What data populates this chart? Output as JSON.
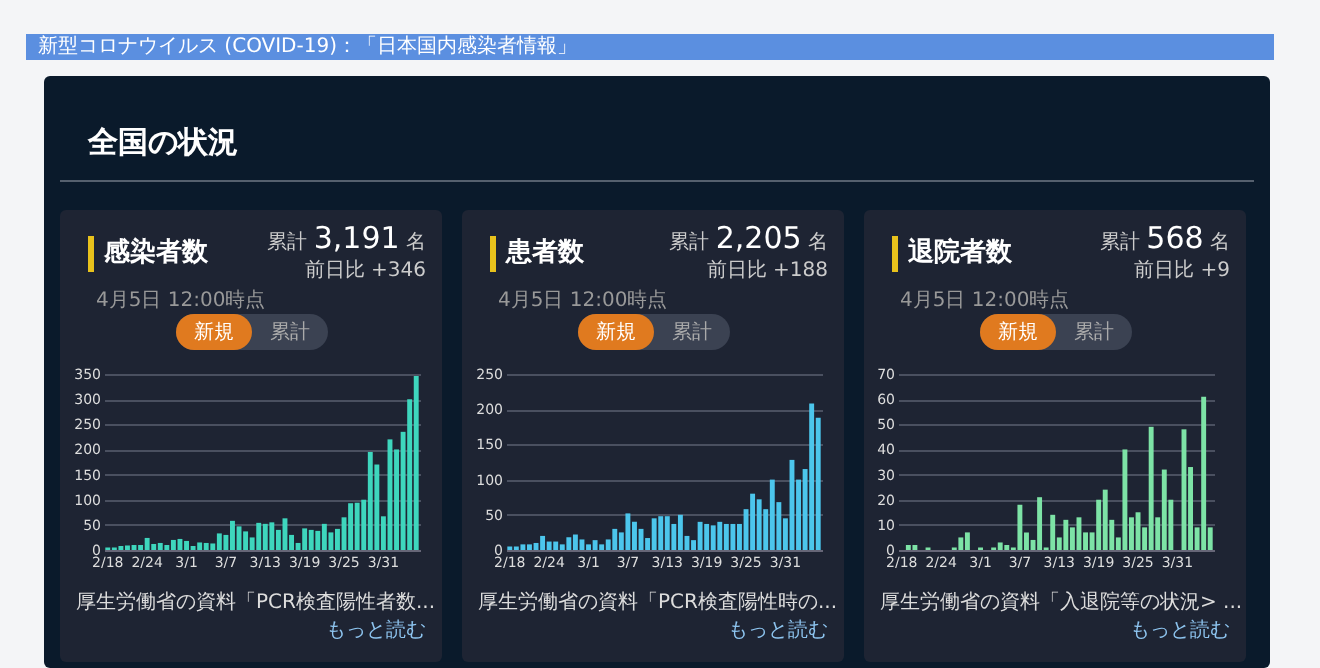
{
  "chart_data": [
    {
      "type": "other",
      "title": "新型コロナウイルス (COVID-19)：「日本国内感染者情報」",
      "subtitle": "全国の状況"
    },
    {
      "type": "bar",
      "title": "感染者数",
      "subtitle": "4月5日 12:00時点",
      "annotations": [
        "累計",
        "3,191",
        "名",
        "前日比 +346",
        "新規",
        "累計",
        "厚生労働省の資料「PCR検査陽性者数...",
        "もっと読む"
      ],
      "categories": [
        "2/18",
        null,
        null,
        null,
        null,
        null,
        "2/24",
        null,
        null,
        null,
        null,
        null,
        "3/1",
        null,
        null,
        null,
        null,
        null,
        "3/7",
        null,
        null,
        null,
        null,
        null,
        "3/13",
        null,
        null,
        null,
        null,
        null,
        "3/19",
        null,
        null,
        null,
        null,
        null,
        "3/25",
        null,
        null,
        null,
        null,
        null,
        "3/31",
        null,
        null,
        null,
        null,
        null
      ],
      "color": "#3ed6bd",
      "values": [
        5,
        5,
        8,
        9,
        10,
        10,
        24,
        12,
        14,
        10,
        20,
        22,
        18,
        8,
        15,
        14,
        13,
        33,
        30,
        58,
        47,
        37,
        25,
        54,
        52,
        55,
        40,
        63,
        30,
        14,
        43,
        40,
        38,
        52,
        35,
        42,
        65,
        93,
        94,
        100,
        195,
        170,
        67,
        220,
        200,
        235,
        300,
        346
      ],
      "ylim": [
        0,
        350
      ],
      "yticks": [
        0,
        50,
        100,
        150,
        200,
        250,
        300,
        350
      ],
      "grid": "y"
    },
    {
      "type": "bar",
      "title": "患者数",
      "subtitle": "4月5日 12:00時点",
      "annotations": [
        "累計",
        "2,205",
        "名",
        "前日比 +188",
        "新規",
        "累計",
        "厚生労働省の資料「PCR検査陽性時の...",
        "もっと読む"
      ],
      "categories": [
        "2/18",
        null,
        null,
        null,
        null,
        null,
        "2/24",
        null,
        null,
        null,
        null,
        null,
        "3/1",
        null,
        null,
        null,
        null,
        null,
        "3/7",
        null,
        null,
        null,
        null,
        null,
        "3/13",
        null,
        null,
        null,
        null,
        null,
        "3/19",
        null,
        null,
        null,
        null,
        null,
        "3/25",
        null,
        null,
        null,
        null,
        null,
        "3/31",
        null,
        null,
        null,
        null,
        null
      ],
      "color": "#4cc6ec",
      "values": [
        5,
        5,
        8,
        8,
        10,
        20,
        12,
        12,
        8,
        18,
        22,
        15,
        8,
        14,
        8,
        15,
        30,
        25,
        52,
        40,
        30,
        17,
        45,
        48,
        48,
        37,
        50,
        20,
        14,
        40,
        37,
        35,
        40,
        37,
        37,
        37,
        58,
        80,
        72,
        58,
        100,
        68,
        45,
        128,
        100,
        115,
        208,
        188
      ],
      "ylim": [
        0,
        250
      ],
      "yticks": [
        0,
        50,
        100,
        150,
        200,
        250
      ],
      "grid": "y"
    },
    {
      "type": "bar",
      "title": "退院者数",
      "subtitle": "4月5日 12:00時点",
      "annotations": [
        "累計",
        "568",
        "名",
        "前日比 +9",
        "新規",
        "累計",
        "厚生労働省の資料「入退院等の状況> ...",
        "もっと読む"
      ],
      "categories": [
        "2/18",
        null,
        null,
        null,
        null,
        null,
        "2/24",
        null,
        null,
        null,
        null,
        null,
        "3/1",
        null,
        null,
        null,
        null,
        null,
        "3/7",
        null,
        null,
        null,
        null,
        null,
        "3/13",
        null,
        null,
        null,
        null,
        null,
        "3/19",
        null,
        null,
        null,
        null,
        null,
        "3/25",
        null,
        null,
        null,
        null,
        null,
        "3/31",
        null,
        null,
        null,
        null,
        null
      ],
      "color": "#7de3a6",
      "values": [
        0,
        2,
        2,
        0,
        1,
        0,
        0,
        0,
        1,
        5,
        7,
        0,
        1,
        0,
        1,
        3,
        2,
        1,
        18,
        7,
        4,
        21,
        1,
        14,
        5,
        12,
        9,
        13,
        7,
        7,
        20,
        24,
        12,
        5,
        40,
        13,
        15,
        9,
        49,
        13,
        32,
        20,
        0,
        48,
        33,
        9,
        61,
        9
      ],
      "ylim": [
        0,
        70
      ],
      "yticks": [
        0,
        10,
        20,
        30,
        40,
        50,
        60,
        70
      ],
      "grid": "y"
    }
  ]
}
